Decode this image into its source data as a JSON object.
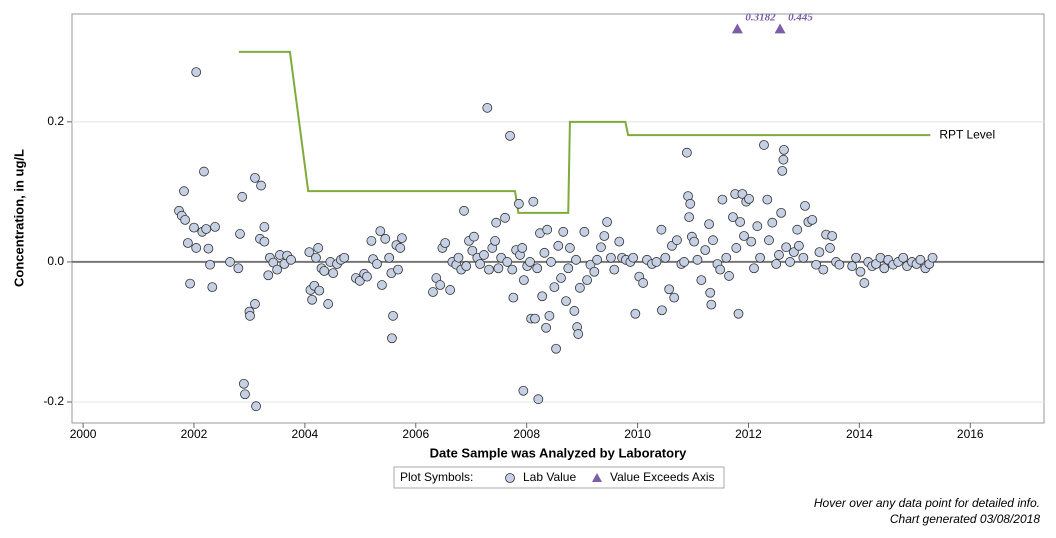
{
  "chart_data": {
    "type": "scatter",
    "x_label": "Date Sample was Analyzed by Laboratory",
    "y_label": "Concentration, in ug/L",
    "xlim": [
      1999.8,
      2017.33
    ],
    "ylim": [
      -0.23,
      0.354
    ],
    "xticks": [
      2000,
      2002,
      2004,
      2006,
      2008,
      2010,
      2012,
      2014,
      2016
    ],
    "yticks": [
      -0.2,
      {
        "value": 0,
        "label": "0.0"
      },
      0.2
    ],
    "grid": true,
    "legend_title": "Plot Symbols:",
    "series": [
      {
        "name": "Lab Value",
        "color": "#c5d0e4",
        "x": [
          2001.73,
          2001.78,
          2001.82,
          2001.84,
          2001.89,
          2001.93,
          2002.0,
          2002.04,
          2002.04,
          2002.15,
          2002.18,
          2002.22,
          2002.26,
          2002.29,
          2002.33,
          2002.38,
          2002.65,
          2002.8,
          2002.83,
          2002.87,
          2002.9,
          2002.92,
          2003.0,
          2003.01,
          2003.1,
          2003.1,
          2003.12,
          2003.19,
          2003.21,
          2003.27,
          2003.27,
          2003.34,
          2003.37,
          2003.43,
          2003.5,
          2003.55,
          2003.63,
          2003.68,
          2003.75,
          2004.08,
          2004.1,
          2004.13,
          2004.17,
          2004.2,
          2004.24,
          2004.26,
          2004.3,
          2004.35,
          2004.42,
          2004.46,
          2004.51,
          2004.58,
          2004.65,
          2004.71,
          2004.92,
          2004.99,
          2005.07,
          2005.12,
          2005.2,
          2005.23,
          2005.3,
          2005.36,
          2005.39,
          2005.45,
          2005.52,
          2005.56,
          2005.57,
          2005.59,
          2005.65,
          2005.68,
          2005.72,
          2005.75,
          2006.31,
          2006.37,
          2006.44,
          2006.48,
          2006.53,
          2006.62,
          2006.66,
          2006.73,
          2006.77,
          2006.82,
          2006.87,
          2006.91,
          2006.96,
          2007.02,
          2007.05,
          2007.11,
          2007.16,
          2007.23,
          2007.29,
          2007.32,
          2007.38,
          2007.43,
          2007.45,
          2007.49,
          2007.54,
          2007.61,
          2007.65,
          2007.7,
          2007.74,
          2007.76,
          2007.81,
          2007.86,
          2007.88,
          2007.92,
          2007.94,
          2007.95,
          2008.01,
          2008.06,
          2008.08,
          2008.12,
          2008.15,
          2008.19,
          2008.21,
          2008.24,
          2008.28,
          2008.32,
          2008.35,
          2008.37,
          2008.41,
          2008.44,
          2008.5,
          2008.53,
          2008.57,
          2008.62,
          2008.66,
          2008.71,
          2008.75,
          2008.78,
          2008.86,
          2008.89,
          2008.91,
          2008.93,
          2008.96,
          2009.04,
          2009.09,
          2009.15,
          2009.22,
          2009.27,
          2009.34,
          2009.4,
          2009.45,
          2009.52,
          2009.58,
          2009.67,
          2009.72,
          2009.79,
          2009.87,
          2009.92,
          2009.96,
          2010.03,
          2010.1,
          2010.17,
          2010.26,
          2010.34,
          2010.43,
          2010.44,
          2010.5,
          2010.57,
          2010.62,
          2010.66,
          2010.71,
          2010.79,
          2010.84,
          2010.89,
          2010.91,
          2010.93,
          2010.95,
          2010.98,
          2011.02,
          2011.08,
          2011.15,
          2011.22,
          2011.29,
          2011.31,
          2011.33,
          2011.36,
          2011.44,
          2011.49,
          2011.53,
          2011.6,
          2011.65,
          2011.72,
          2011.76,
          2011.78,
          2011.82,
          2011.85,
          2011.89,
          2011.92,
          2011.96,
          2012.01,
          2012.05,
          2012.1,
          2012.16,
          2012.21,
          2012.28,
          2012.34,
          2012.37,
          2012.43,
          2012.5,
          2012.55,
          2012.59,
          2012.61,
          2012.63,
          2012.64,
          2012.68,
          2012.75,
          2012.82,
          2012.88,
          2012.91,
          2012.99,
          2013.02,
          2013.08,
          2013.15,
          2013.22,
          2013.28,
          2013.35,
          2013.4,
          2013.47,
          2013.51,
          2013.58,
          2013.64,
          2013.87,
          2013.94,
          2014.02,
          2014.09,
          2014.16,
          2014.23,
          2014.3,
          2014.38,
          2014.45,
          2014.52,
          2014.61,
          2014.7,
          2014.79,
          2014.86,
          2014.95,
          2015.03,
          2015.1,
          2015.19,
          2015.26,
          2015.32
        ],
        "values": [
          0.073,
          0.066,
          0.101,
          0.06,
          0.027,
          -0.031,
          0.049,
          0.271,
          0.02,
          0.043,
          0.129,
          0.047,
          0.019,
          -0.004,
          -0.036,
          0.05,
          0,
          -0.009,
          0.04,
          0.093,
          -0.174,
          -0.189,
          -0.071,
          -0.077,
          0.12,
          -0.06,
          -0.206,
          0.033,
          0.109,
          0.029,
          0.05,
          -0.019,
          0.006,
          -0.001,
          -0.011,
          0.01,
          -0.003,
          0.009,
          0.003,
          0.014,
          -0.04,
          -0.054,
          -0.034,
          0.006,
          0.02,
          -0.041,
          -0.009,
          -0.013,
          -0.06,
          0,
          -0.016,
          -0.003,
          0.003,
          0.006,
          -0.023,
          -0.027,
          -0.017,
          -0.021,
          0.03,
          0.004,
          -0.003,
          0.044,
          -0.033,
          0.033,
          0.006,
          -0.016,
          -0.109,
          -0.077,
          0.024,
          -0.011,
          0.02,
          0.034,
          -0.043,
          -0.023,
          -0.033,
          0.02,
          0.027,
          -0.04,
          0,
          -0.004,
          0.006,
          -0.011,
          0.073,
          -0.006,
          0.03,
          0.016,
          0.036,
          0.006,
          -0.003,
          0.01,
          0.22,
          -0.011,
          0.02,
          0.03,
          0.056,
          -0.009,
          0.006,
          0.063,
          0,
          0.18,
          -0.011,
          -0.051,
          0.017,
          0.083,
          0.01,
          0.02,
          -0.184,
          -0.026,
          -0.006,
          0,
          -0.081,
          0.086,
          -0.081,
          -0.009,
          -0.196,
          0.041,
          -0.049,
          0.013,
          -0.094,
          0.046,
          -0.077,
          0,
          -0.036,
          -0.124,
          0.023,
          -0.023,
          0.043,
          -0.056,
          -0.009,
          0.02,
          -0.07,
          0.003,
          -0.093,
          -0.103,
          -0.037,
          0.043,
          -0.026,
          -0.004,
          -0.014,
          0.003,
          0.021,
          0.037,
          0.057,
          0.006,
          -0.011,
          0.029,
          0.006,
          0.003,
          0,
          0.006,
          -0.074,
          -0.021,
          -0.03,
          0.003,
          -0.003,
          0,
          0.046,
          -0.069,
          0.006,
          -0.039,
          0.023,
          -0.051,
          0.031,
          -0.003,
          0,
          0.156,
          0.094,
          0.064,
          0.083,
          0.036,
          0.029,
          0.003,
          -0.026,
          0.017,
          0.054,
          -0.044,
          -0.061,
          0.031,
          -0.003,
          -0.011,
          0.089,
          0.006,
          -0.02,
          0.064,
          0.097,
          0.02,
          -0.074,
          0.057,
          0.097,
          0.037,
          0.086,
          0.09,
          0.029,
          -0.009,
          0.051,
          0.006,
          0.167,
          0.089,
          0.031,
          0.056,
          -0.003,
          0.01,
          0.07,
          0.13,
          0.146,
          0.16,
          0.021,
          0,
          0.014,
          0.046,
          0.023,
          0.006,
          0.08,
          0.057,
          0.06,
          -0.004,
          0.014,
          -0.011,
          0.039,
          0.02,
          0.037,
          0,
          -0.004,
          -0.006,
          0.006,
          -0.014,
          -0.03,
          0,
          -0.006,
          -0.003,
          0.006,
          -0.009,
          0.003,
          -0.004,
          0,
          0.006,
          -0.006,
          0,
          -0.003,
          0.003,
          -0.009,
          -0.003,
          0.006
        ]
      },
      {
        "name": "Value Exceeds Axis",
        "color": "#7b5ea7",
        "x": [
          2011.8,
          2012.57
        ],
        "values": [
          0.3182,
          0.445
        ],
        "value_labels": [
          "0.3182",
          "0.445"
        ]
      }
    ],
    "reference_line": {
      "name": "RPT Level",
      "color": "#7faa3c",
      "x": [
        2002.81,
        2003.73,
        2004.06,
        2007.79,
        2007.85,
        2008.75,
        2008.78,
        2009.78,
        2009.83,
        2015.28
      ],
      "values": [
        0.3,
        0.3,
        0.101,
        0.101,
        0.07,
        0.07,
        0.2,
        0.2,
        0.181,
        0.181
      ]
    },
    "footnotes": [
      "Hover over any data point for detailed info.",
      "Chart generated 03/08/2018"
    ]
  }
}
